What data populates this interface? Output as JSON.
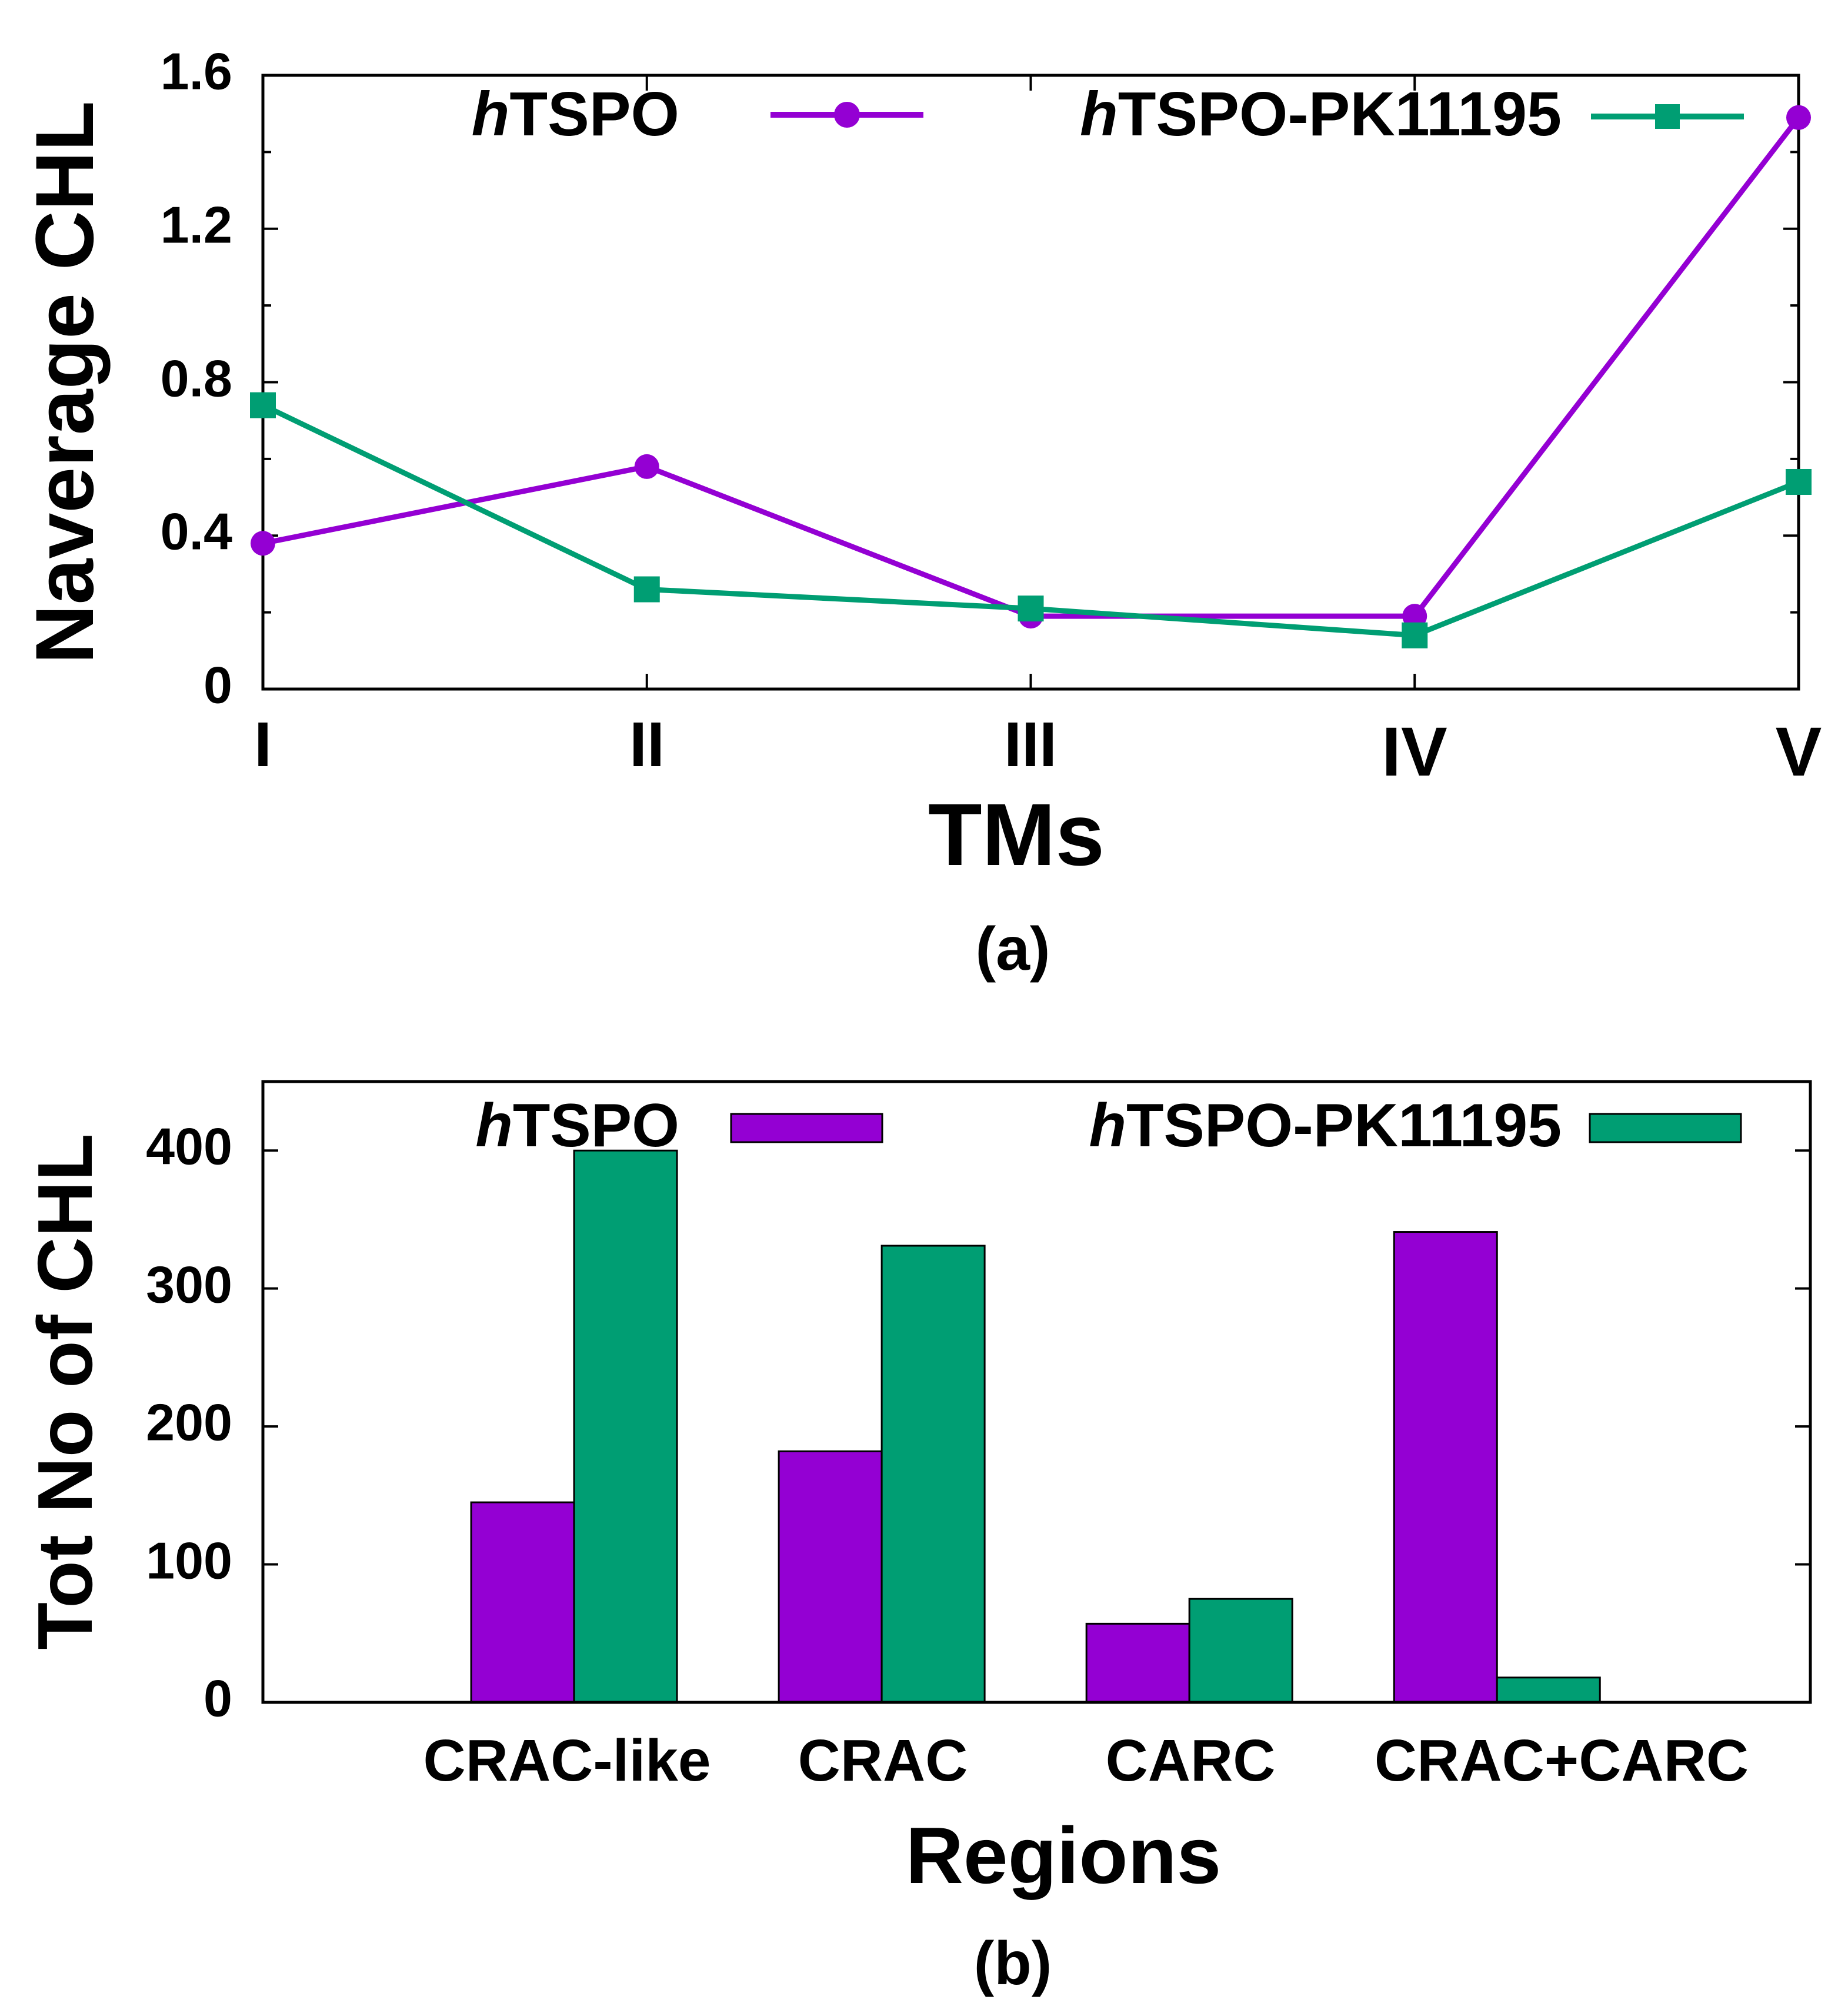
{
  "chart_data": [
    {
      "type": "line",
      "panel_label": "(a)",
      "xlabel": "TMs",
      "ylabel": "Naverage CHL",
      "categories": [
        "I",
        "II",
        "III",
        "IV",
        "V"
      ],
      "ylim": [
        0,
        1.6
      ],
      "yticks": [
        "0",
        "0.4",
        "0.8",
        "1.2",
        "1.6"
      ],
      "yticks_values": [
        0,
        0.4,
        0.8,
        1.2,
        1.6
      ],
      "minor_ticks": [
        0.2,
        0.6,
        1.0,
        1.4
      ],
      "legend_position": "top",
      "series": [
        {
          "name_prefix": "h",
          "name_suffix": "TSPO",
          "color": "#9400d3",
          "marker": "circle",
          "values": [
            0.38,
            0.58,
            0.19,
            0.19,
            1.49
          ]
        },
        {
          "name_prefix": "h",
          "name_suffix": "TSPO-PK11195",
          "color": "#009e73",
          "marker": "square",
          "values": [
            0.74,
            0.26,
            0.21,
            0.14,
            0.54
          ]
        }
      ]
    },
    {
      "type": "bar",
      "panel_label": "(b)",
      "xlabel": "Regions",
      "ylabel": "Tot No of CHL",
      "categories": [
        "CRAC-like",
        "CRAC",
        "CARC",
        "CRAC+CARC"
      ],
      "ylim": [
        0,
        450
      ],
      "yticks": [
        "0",
        "100",
        "200",
        "300",
        "400"
      ],
      "yticks_values": [
        0,
        100,
        200,
        300,
        400
      ],
      "legend_position": "top",
      "series": [
        {
          "name_prefix": "h",
          "name_suffix": "TSPO",
          "color": "#9400d3",
          "values": [
            145,
            182,
            57,
            341
          ]
        },
        {
          "name_prefix": "h",
          "name_suffix": "TSPO-PK11195",
          "color": "#009e73",
          "values": [
            400,
            331,
            75,
            18
          ]
        }
      ]
    }
  ]
}
